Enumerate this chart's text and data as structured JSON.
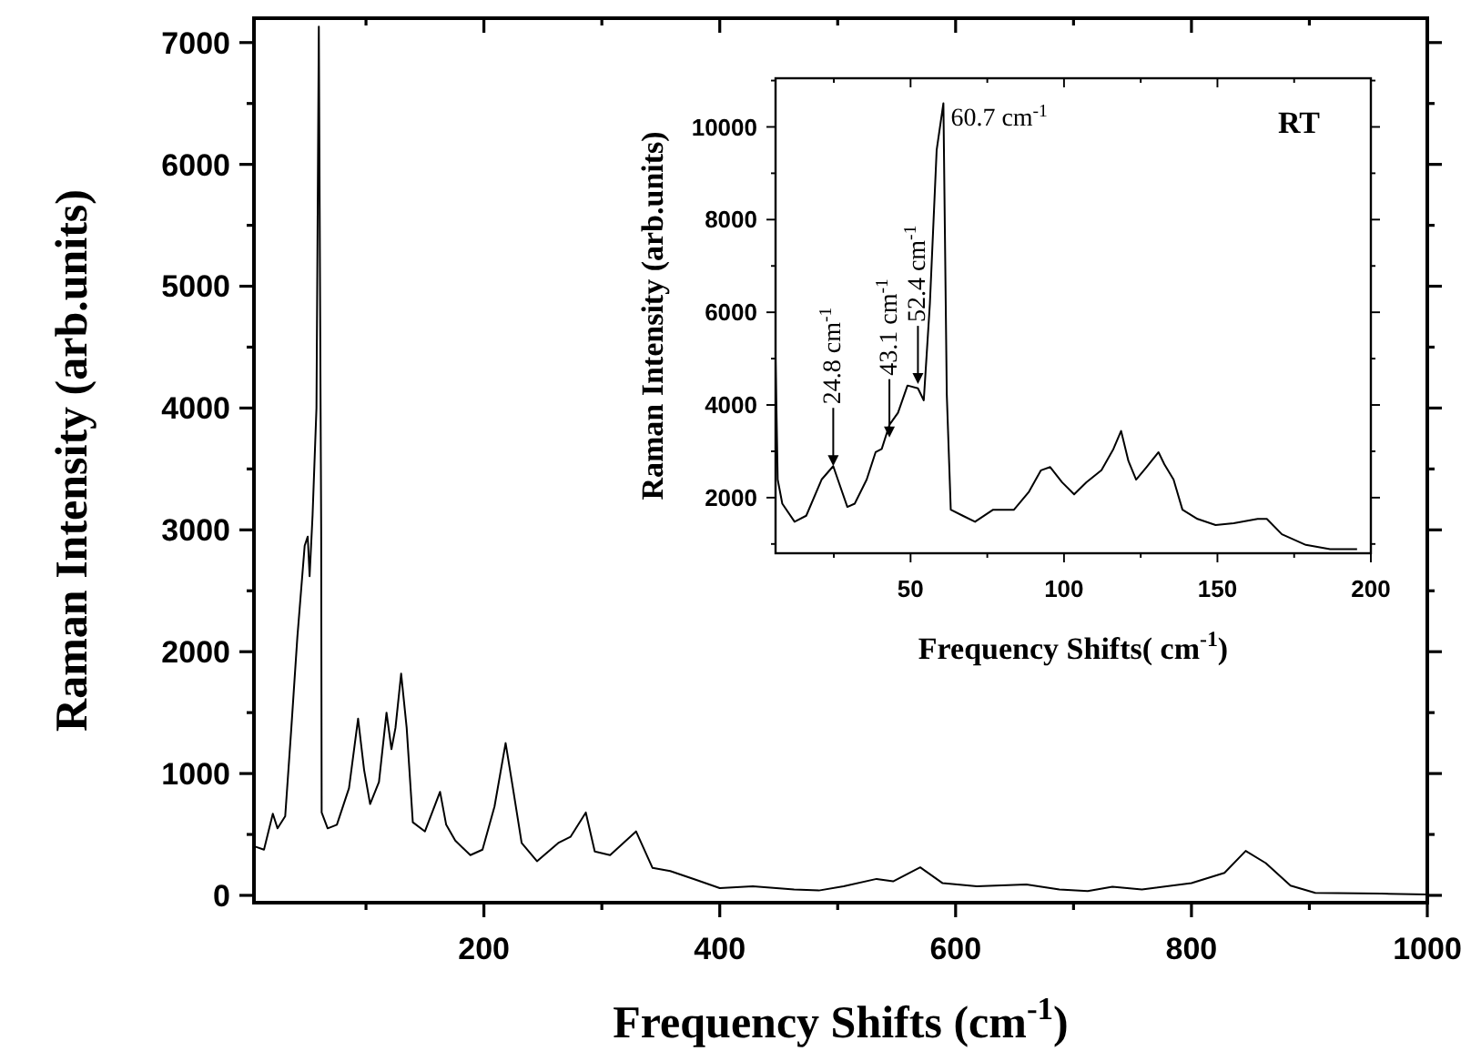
{
  "chart_data": [
    {
      "type": "line",
      "xlabel": "Frequency Shifts (cm$^{-1}$)",
      "ylabel": "Raman Intensity (arb.units)",
      "xlim": [
        5,
        1000
      ],
      "ylim": [
        -60,
        7200
      ],
      "xticks": [
        {
          "value": 100,
          "label": null
        },
        200,
        {
          "value": 300,
          "label": null
        },
        400,
        {
          "value": 500,
          "label": null
        },
        600,
        {
          "value": 700,
          "label": null
        },
        800,
        {
          "value": 900,
          "label": null
        },
        1000
      ],
      "yticks": [
        0,
        {
          "value": 500,
          "label": null
        },
        1000,
        {
          "value": 1500,
          "label": null
        },
        2000,
        {
          "value": 2500,
          "label": null
        },
        3000,
        {
          "value": 3500,
          "label": null
        },
        4000,
        {
          "value": 4500,
          "label": null
        },
        5000,
        {
          "value": 5500,
          "label": null
        },
        6000,
        {
          "value": 6500,
          "label": null
        },
        7000
      ],
      "series": [
        {
          "color": "#000000",
          "x": [
            6,
            13.5,
            21,
            25,
            31.5,
            36.7,
            41.8,
            48,
            50.6,
            52.2,
            54.7,
            58,
            60,
            62,
            62.4,
            67.5,
            75.3,
            85.6,
            93.3,
            98.4,
            103.5,
            111,
            117.4,
            121.6,
            125,
            129.8,
            134.5,
            139.7,
            150,
            162.8,
            168,
            175.7,
            188.5,
            198.8,
            209,
            218.4,
            224.6,
            232,
            245,
            263,
            273.4,
            286.4,
            294,
            307,
            329,
            343,
            358,
            379,
            400,
            428,
            463,
            484,
            505,
            533,
            547,
            570,
            589,
            618,
            660,
            688,
            712,
            733,
            758,
            800,
            828,
            846,
            863,
            884,
            905,
            961,
            1000
          ],
          "values": [
            400,
            375,
            670,
            550,
            650,
            1375,
            2120,
            2870,
            2945,
            2620,
            3120,
            4000,
            7130,
            3000,
            680,
            550,
            580,
            880,
            1450,
            1030,
            750,
            930,
            1500,
            1200,
            1375,
            1820,
            1375,
            600,
            525,
            850,
            580,
            450,
            330,
            375,
            730,
            1250,
            880,
            430,
            280,
            430,
            480,
            680,
            360,
            330,
            525,
            225,
            200,
            130,
            60,
            75,
            48,
            40,
            75,
            135,
            115,
            230,
            100,
            75,
            90,
            48,
            35,
            70,
            48,
            100,
            185,
            365,
            265,
            80,
            20,
            14,
            7
          ]
        }
      ]
    },
    {
      "type": "line",
      "xlabel": "Frequency Shifts( cm$^{-1}$)",
      "ylabel": "Raman Intensity (arb.units)",
      "xlim": [
        6,
        200
      ],
      "ylim": [
        800,
        11050
      ],
      "xticks": [
        {
          "value": 25,
          "label": null
        },
        50,
        {
          "value": 75,
          "label": null
        },
        100,
        {
          "value": 125,
          "label": null
        },
        150,
        {
          "value": 175,
          "label": null
        },
        200
      ],
      "yticks": [
        {
          "value": 1000,
          "label": null
        },
        2000,
        {
          "value": 3000,
          "label": null
        },
        4000,
        {
          "value": 5000,
          "label": null
        },
        6000,
        {
          "value": 7000,
          "label": null
        },
        8000,
        {
          "value": 9000,
          "label": null
        },
        10000,
        {
          "value": 11000,
          "label": null
        }
      ],
      "series": [
        {
          "color": "#000000",
          "x": [
            6,
            6.7,
            8.2,
            12.2,
            16,
            21,
            24.8,
            26.3,
            29.4,
            31.8,
            35.7,
            38.6,
            40.6,
            43.1,
            45.9,
            49,
            52.4,
            54.3,
            56.3,
            58.5,
            60.7,
            61.8,
            63.1,
            67,
            71,
            76.9,
            83.7,
            88.6,
            92.5,
            95.5,
            99.4,
            103.3,
            107.3,
            112.2,
            116.1,
            118.6,
            121,
            123.5,
            126.9,
            130.8,
            132.7,
            135.7,
            138.6,
            143.5,
            149.4,
            155.3,
            163.1,
            166.1,
            171,
            178.8,
            186.7,
            195.5
          ],
          "values": [
            5010,
            2390,
            1870,
            1480,
            1610,
            2390,
            2680,
            2390,
            1800,
            1870,
            2390,
            2980,
            3050,
            3570,
            3830,
            4420,
            4360,
            4100,
            6190,
            9500,
            10510,
            4230,
            1740,
            1610,
            1480,
            1740,
            1740,
            2130,
            2590,
            2660,
            2330,
            2070,
            2330,
            2590,
            3050,
            3440,
            2790,
            2390,
            2660,
            2980,
            2720,
            2390,
            1740,
            1540,
            1410,
            1450,
            1540,
            1540,
            1210,
            980,
            890,
            890
          ]
        }
      ],
      "annotations": [
        {
          "text": "24.8 cm$^{-1}$",
          "x": 24.8,
          "y": 2680
        },
        {
          "text": "43.1 cm$^{-1}$",
          "x": 43.1,
          "y": 3300
        },
        {
          "text": "52.4 cm$^{-1}$",
          "x": 52.4,
          "y": 4450
        },
        {
          "text": "60.7 cm$^{-1}$",
          "x": 60.7,
          "y": 10510
        },
        "RT"
      ]
    }
  ]
}
